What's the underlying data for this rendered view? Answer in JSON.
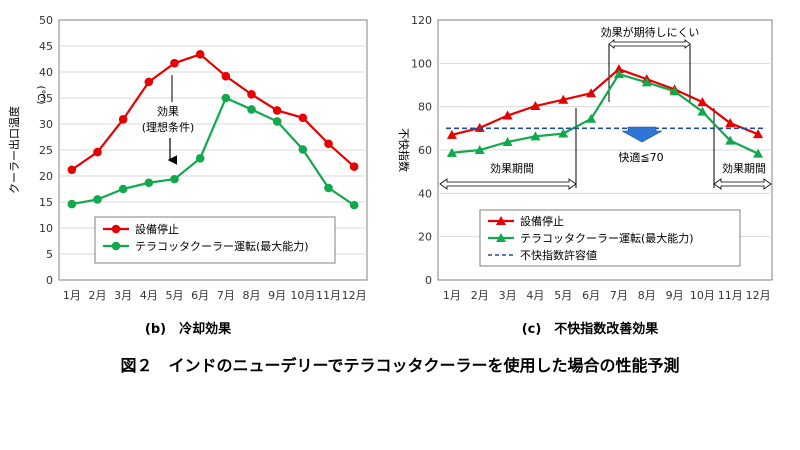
{
  "colors": {
    "red": "#e60000",
    "green": "#12a84c",
    "blue_dash": "#1f4e9c",
    "axis": "#808080",
    "grid": "#d9d9d9",
    "arrow_blue": "#2e75d6"
  },
  "figure_title": "図２　インドのニューデリーでテラコッタクーラーを使用した場合の性能予測",
  "chart_data": [
    {
      "type": "line",
      "caption": "(b)　冷却効果",
      "ylabel": "クーラー出口温度",
      "yunit": "(℃)",
      "ylim": [
        0,
        50
      ],
      "yticks": [
        "0",
        "5",
        "10",
        "15",
        "20",
        "25",
        "30",
        "35",
        "40",
        "45",
        "50"
      ],
      "categories": [
        "1月",
        "2月",
        "3月",
        "4月",
        "5月",
        "6月",
        "7月",
        "8月",
        "9月",
        "10月",
        "11月",
        "12月"
      ],
      "series": [
        {
          "name": "設備停止",
          "marker": "circle",
          "color": "#e60000",
          "values": [
            21.2,
            24.6,
            30.9,
            38.1,
            41.7,
            43.4,
            39.2,
            35.7,
            32.6,
            31.2,
            26.2,
            21.8
          ]
        },
        {
          "name": "テラコッタクーラー運転(最大能力)",
          "marker": "circle",
          "color": "#12a84c",
          "values": [
            14.6,
            15.5,
            17.5,
            18.7,
            19.4,
            23.4,
            35.0,
            32.8,
            30.5,
            25.1,
            17.7,
            14.4
          ]
        }
      ],
      "annotations": [
        "効果",
        "(理想条件)"
      ],
      "grid": true,
      "legend": "bottom-center"
    },
    {
      "type": "line",
      "caption": "(c)　不快指数改善効果",
      "ylabel": "不快指数",
      "ylim": [
        0,
        120
      ],
      "yticks": [
        "0",
        "20",
        "40",
        "60",
        "80",
        "100",
        "120"
      ],
      "categories": [
        "1月",
        "2月",
        "3月",
        "4月",
        "5月",
        "6月",
        "7月",
        "8月",
        "9月",
        "10月",
        "11月",
        "12月"
      ],
      "series": [
        {
          "name": "設備停止",
          "marker": "triangle",
          "color": "#e60000",
          "values": [
            67.0,
            70.2,
            75.9,
            80.3,
            83.2,
            86.2,
            97.3,
            92.7,
            88.0,
            82.1,
            72.4,
            67.3
          ]
        },
        {
          "name": "テラコッタクーラー運転(最大能力)",
          "marker": "triangle",
          "color": "#12a84c",
          "values": [
            58.7,
            60.0,
            63.7,
            66.3,
            67.6,
            74.4,
            95.0,
            91.2,
            87.1,
            77.7,
            64.3,
            58.3
          ]
        },
        {
          "name": "不快指数許容値",
          "marker": "none",
          "style": "dashed",
          "color": "#1f4e9c",
          "values": [
            70,
            70,
            70,
            70,
            70,
            70,
            70,
            70,
            70,
            70,
            70,
            70
          ]
        }
      ],
      "annotations": [
        "効果が期待しにくい",
        "快適≦70",
        "効果期間",
        "効果期間"
      ],
      "grid": true,
      "legend": "bottom-center"
    }
  ]
}
